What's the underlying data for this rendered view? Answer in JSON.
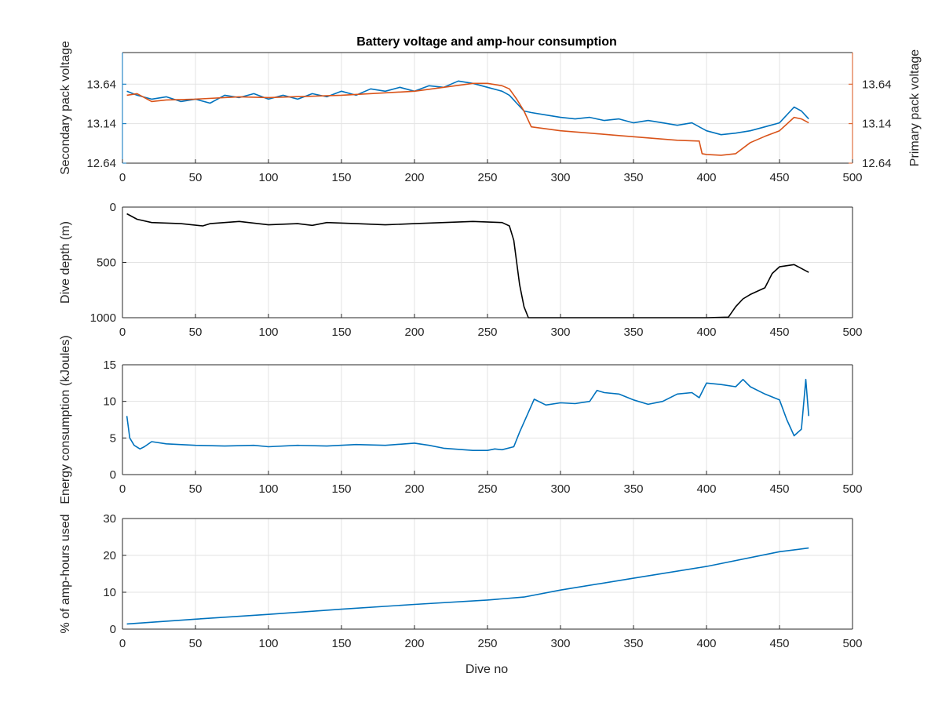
{
  "chart_data": [
    {
      "type": "line",
      "title": "Battery voltage and amp-hour consumption",
      "xlabel": "",
      "ylabel": "Secondary pack voltage",
      "y2label": "Primary pack voltage",
      "xlim": [
        0,
        500
      ],
      "ylim": [
        12.64,
        14.04
      ],
      "y2lim": [
        12.64,
        14.04
      ],
      "xticks": [
        "0",
        "50",
        "100",
        "150",
        "200",
        "250",
        "300",
        "350",
        "400",
        "450",
        "500"
      ],
      "yticks": [
        "12.64",
        "13.14",
        "13.64"
      ],
      "y2ticks": [
        "12.64",
        "13.14",
        "13.64"
      ],
      "grid": true,
      "series": [
        {
          "axis": "left",
          "color": "#0072BD",
          "x": [
            3,
            10,
            20,
            30,
            40,
            50,
            60,
            70,
            80,
            90,
            100,
            110,
            120,
            130,
            140,
            150,
            160,
            170,
            180,
            190,
            200,
            210,
            220,
            230,
            240,
            250,
            260,
            265,
            270,
            275,
            280,
            290,
            300,
            310,
            320,
            330,
            340,
            350,
            360,
            370,
            380,
            390,
            400,
            410,
            420,
            430,
            440,
            450,
            460,
            465,
            470
          ],
          "y": [
            13.55,
            13.5,
            13.45,
            13.48,
            13.42,
            13.45,
            13.4,
            13.5,
            13.47,
            13.52,
            13.45,
            13.5,
            13.45,
            13.52,
            13.48,
            13.55,
            13.5,
            13.58,
            13.55,
            13.6,
            13.55,
            13.62,
            13.6,
            13.68,
            13.65,
            13.6,
            13.55,
            13.5,
            13.4,
            13.3,
            13.28,
            13.25,
            13.22,
            13.2,
            13.22,
            13.18,
            13.2,
            13.15,
            13.18,
            13.15,
            13.12,
            13.15,
            13.05,
            13.0,
            13.02,
            13.05,
            13.1,
            13.15,
            13.35,
            13.3,
            13.2
          ]
        },
        {
          "axis": "right",
          "color": "#D95319",
          "x": [
            3,
            10,
            20,
            30,
            50,
            80,
            100,
            150,
            200,
            220,
            240,
            250,
            260,
            265,
            270,
            275,
            280,
            300,
            320,
            340,
            360,
            380,
            395,
            397,
            400,
            410,
            420,
            430,
            440,
            450,
            460,
            465,
            470
          ],
          "y": [
            13.5,
            13.52,
            13.42,
            13.44,
            13.45,
            13.48,
            13.47,
            13.5,
            13.55,
            13.6,
            13.65,
            13.65,
            13.62,
            13.58,
            13.45,
            13.3,
            13.1,
            13.05,
            13.02,
            12.99,
            12.96,
            12.93,
            12.92,
            12.76,
            12.75,
            12.74,
            12.76,
            12.9,
            12.98,
            13.05,
            13.22,
            13.2,
            13.15
          ]
        }
      ]
    },
    {
      "type": "line",
      "xlabel": "",
      "ylabel": "Dive depth (m)",
      "xlim": [
        0,
        500
      ],
      "ylim": [
        1000,
        0
      ],
      "y_reversed": true,
      "xticks": [
        "0",
        "50",
        "100",
        "150",
        "200",
        "250",
        "300",
        "350",
        "400",
        "450",
        "500"
      ],
      "yticks": [
        "0",
        "500",
        "1000"
      ],
      "grid": true,
      "series": [
        {
          "color": "#000000",
          "x": [
            3,
            10,
            20,
            40,
            55,
            60,
            80,
            100,
            120,
            130,
            140,
            160,
            180,
            200,
            220,
            240,
            260,
            265,
            268,
            270,
            272,
            275,
            278,
            280,
            300,
            350,
            400,
            415,
            420,
            425,
            430,
            440,
            445,
            450,
            460,
            470
          ],
          "y": [
            60,
            110,
            140,
            150,
            170,
            150,
            130,
            160,
            150,
            165,
            140,
            150,
            160,
            150,
            140,
            130,
            140,
            170,
            300,
            500,
            700,
            900,
            1000,
            1000,
            1000,
            1000,
            1000,
            995,
            900,
            830,
            790,
            730,
            600,
            540,
            520,
            590
          ]
        }
      ]
    },
    {
      "type": "line",
      "xlabel": "",
      "ylabel": "Energy consumption (kJoules)",
      "xlim": [
        0,
        500
      ],
      "ylim": [
        0,
        15
      ],
      "xticks": [
        "0",
        "50",
        "100",
        "150",
        "200",
        "250",
        "300",
        "350",
        "400",
        "450",
        "500"
      ],
      "yticks": [
        "0",
        "5",
        "10",
        "15"
      ],
      "grid": true,
      "series": [
        {
          "color": "#0072BD",
          "x": [
            3,
            5,
            8,
            12,
            15,
            20,
            30,
            50,
            70,
            90,
            100,
            120,
            140,
            160,
            180,
            200,
            210,
            220,
            240,
            250,
            255,
            260,
            268,
            272,
            278,
            282,
            290,
            300,
            310,
            320,
            325,
            330,
            340,
            350,
            360,
            370,
            380,
            390,
            395,
            400,
            410,
            420,
            425,
            430,
            440,
            450,
            455,
            460,
            465,
            468,
            470
          ],
          "y": [
            8.0,
            5.0,
            4.0,
            3.5,
            3.8,
            4.5,
            4.2,
            4.0,
            3.9,
            4.0,
            3.8,
            4.0,
            3.9,
            4.1,
            4.0,
            4.3,
            4.0,
            3.6,
            3.3,
            3.3,
            3.5,
            3.4,
            3.8,
            5.8,
            8.5,
            10.3,
            9.5,
            9.8,
            9.7,
            10.0,
            11.5,
            11.2,
            11.0,
            10.2,
            9.6,
            10.0,
            11.0,
            11.2,
            10.5,
            12.5,
            12.3,
            12.0,
            13.0,
            12.0,
            11.0,
            10.2,
            7.5,
            5.3,
            6.2,
            13.0,
            8.0
          ]
        }
      ]
    },
    {
      "type": "line",
      "xlabel": "Dive no",
      "ylabel": "% of amp-hours used",
      "xlim": [
        0,
        500
      ],
      "ylim": [
        0,
        30
      ],
      "xticks": [
        "0",
        "50",
        "100",
        "150",
        "200",
        "250",
        "300",
        "350",
        "400",
        "450",
        "500"
      ],
      "yticks": [
        "0",
        "10",
        "20",
        "30"
      ],
      "grid": true,
      "series": [
        {
          "color": "#0072BD",
          "x": [
            3,
            50,
            100,
            150,
            200,
            250,
            275,
            300,
            350,
            400,
            450,
            470
          ],
          "y": [
            1.4,
            2.7,
            4.0,
            5.4,
            6.7,
            7.9,
            8.7,
            10.6,
            13.8,
            17.0,
            21.0,
            22.0
          ]
        }
      ]
    }
  ]
}
